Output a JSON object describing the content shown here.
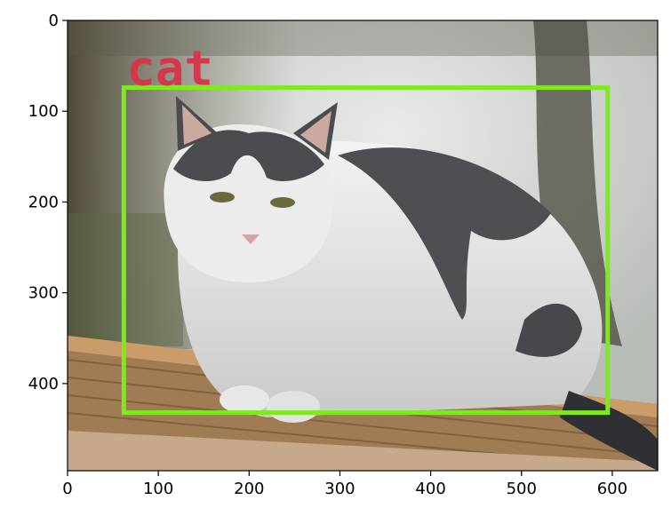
{
  "figure": {
    "type": "image_with_bounding_box",
    "description_hidden": true
  },
  "axes": {
    "x_ticks": [
      0,
      100,
      200,
      300,
      400,
      500,
      600
    ],
    "y_ticks": [
      0,
      100,
      200,
      300,
      400
    ],
    "xlim": [
      0,
      650
    ],
    "ylim_top_to_bottom": [
      0,
      496
    ]
  },
  "detection": {
    "label": "cat",
    "label_color": "#d6384b",
    "box_color": "#7eea1e",
    "box_data": {
      "x1": 62,
      "y1": 74,
      "x2": 595,
      "y2": 432
    }
  }
}
